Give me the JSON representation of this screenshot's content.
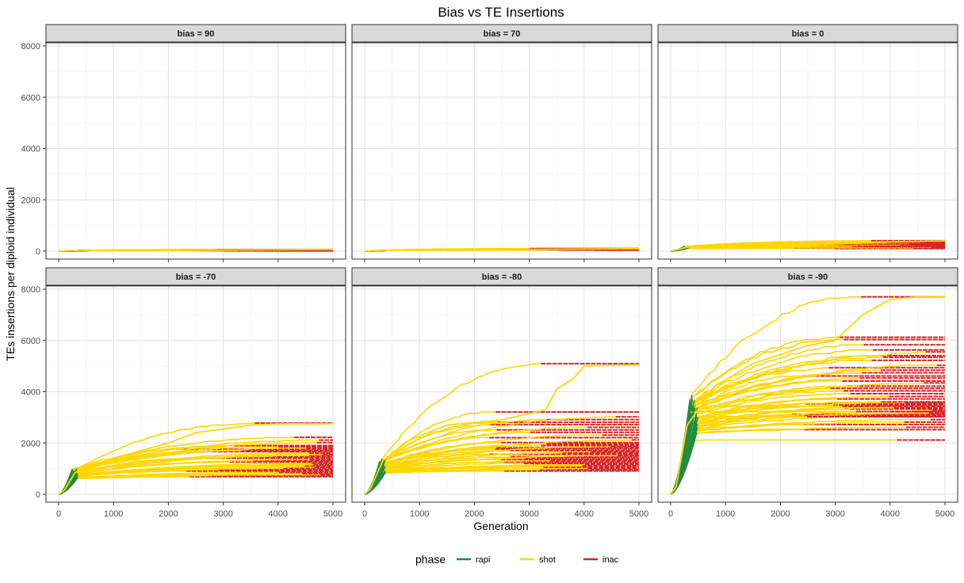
{
  "figure": {
    "title": "Bias vs TE Insertions",
    "xlabel": "Generation",
    "ylabel": "TEs insertions per diploid individual"
  },
  "legend": {
    "title": "phase",
    "items": [
      {
        "label": "rapi",
        "color": "#238b45"
      },
      {
        "label": "shot",
        "color": "#ffd700"
      },
      {
        "label": "inac",
        "color": "#d62728"
      }
    ]
  },
  "chart_data": {
    "type": "line",
    "xlim": [
      0,
      5000
    ],
    "ylim": [
      0,
      8000
    ],
    "x_ticks": [
      0,
      1000,
      2000,
      3000,
      4000,
      5000
    ],
    "y_ticks": [
      0,
      2000,
      4000,
      6000,
      8000
    ],
    "grid": true,
    "legend_position": "bottom",
    "panels": [
      {
        "strip": "bias = 90",
        "rapi_end_x": 500,
        "rapi_end_y": 30,
        "run_count": 20,
        "final_values": [
          10,
          12,
          15,
          18,
          20,
          22,
          25,
          28,
          30,
          32,
          35,
          38,
          40,
          42,
          45,
          48,
          50,
          52,
          55,
          58
        ],
        "max_run": {
          "x": [
            0,
            500,
            5000
          ],
          "y": [
            0,
            30,
            60
          ]
        }
      },
      {
        "strip": "bias = 70",
        "rapi_end_x": 350,
        "rapi_end_y": 30,
        "run_count": 20,
        "final_values": [
          40,
          45,
          50,
          55,
          60,
          62,
          65,
          68,
          70,
          72,
          75,
          78,
          80,
          82,
          85,
          88,
          90,
          92,
          95,
          100
        ],
        "max_run": {
          "x": [
            0,
            350,
            5000
          ],
          "y": [
            0,
            30,
            100
          ]
        }
      },
      {
        "strip": "bias = 0",
        "rapi_end_x": 300,
        "rapi_end_y": 150,
        "run_count": 25,
        "final_values": [
          100,
          120,
          140,
          160,
          180,
          200,
          210,
          220,
          230,
          240,
          250,
          260,
          270,
          280,
          290,
          300,
          310,
          320,
          330,
          340,
          350,
          360,
          370,
          380,
          400
        ],
        "max_run": {
          "x": [
            0,
            300,
            1000,
            3000,
            5000
          ],
          "y": [
            0,
            150,
            250,
            330,
            400
          ]
        }
      },
      {
        "strip": "bias = -70",
        "rapi_end_x": 300,
        "rapi_end_y": 800,
        "run_count": 30,
        "final_values": [
          680,
          720,
          760,
          800,
          850,
          900,
          950,
          1000,
          1050,
          1100,
          1150,
          1200,
          1250,
          1300,
          1350,
          1400,
          1450,
          1500,
          1550,
          1600,
          1650,
          1700,
          1750,
          1800,
          1850,
          1900,
          2000,
          2100,
          2200,
          2750
        ],
        "max_run": {
          "x": [
            0,
            100,
            300,
            1000,
            2000,
            2500,
            3500,
            4000,
            5000
          ],
          "y": [
            0,
            150,
            850,
            1400,
            2000,
            2400,
            2700,
            2750,
            2750
          ]
        }
      },
      {
        "strip": "bias = -80",
        "rapi_end_x": 330,
        "rapi_end_y": 1100,
        "run_count": 35,
        "final_values": [
          900,
          950,
          1000,
          1050,
          1100,
          1150,
          1200,
          1250,
          1300,
          1350,
          1400,
          1450,
          1500,
          1550,
          1600,
          1650,
          1700,
          1750,
          1800,
          1850,
          1900,
          1950,
          2000,
          2100,
          2200,
          2300,
          2400,
          2500,
          2600,
          2700,
          2800,
          2900,
          3000,
          3200,
          5050
        ],
        "max_run": {
          "x": [
            0,
            100,
            330,
            800,
            1500,
            2500,
            3300,
            3500,
            3800,
            4000,
            5000
          ],
          "y": [
            0,
            200,
            1300,
            2100,
            2700,
            2900,
            3300,
            4100,
            4500,
            5000,
            5050
          ]
        }
      },
      {
        "strip": "bias = -90",
        "rapi_end_x": 420,
        "rapi_end_y": 3100,
        "run_count": 45,
        "final_values": [
          2100,
          2500,
          2600,
          2700,
          2800,
          2900,
          3000,
          3050,
          3100,
          3150,
          3200,
          3250,
          3300,
          3350,
          3400,
          3450,
          3500,
          3550,
          3600,
          3700,
          3800,
          3900,
          4000,
          4100,
          4200,
          4300,
          4400,
          4500,
          4600,
          4700,
          4800,
          4900,
          5000,
          5200,
          5300,
          5400,
          5500,
          5600,
          5800,
          6000,
          6100,
          3000,
          3200,
          3400,
          7700
        ],
        "max_run": {
          "x": [
            0,
            100,
            300,
            800,
            1500,
            2500,
            3000,
            3500,
            4000,
            4500,
            5000
          ],
          "y": [
            0,
            300,
            2700,
            4200,
            5100,
            5800,
            6000,
            7000,
            7600,
            7700,
            7700
          ]
        }
      }
    ]
  }
}
